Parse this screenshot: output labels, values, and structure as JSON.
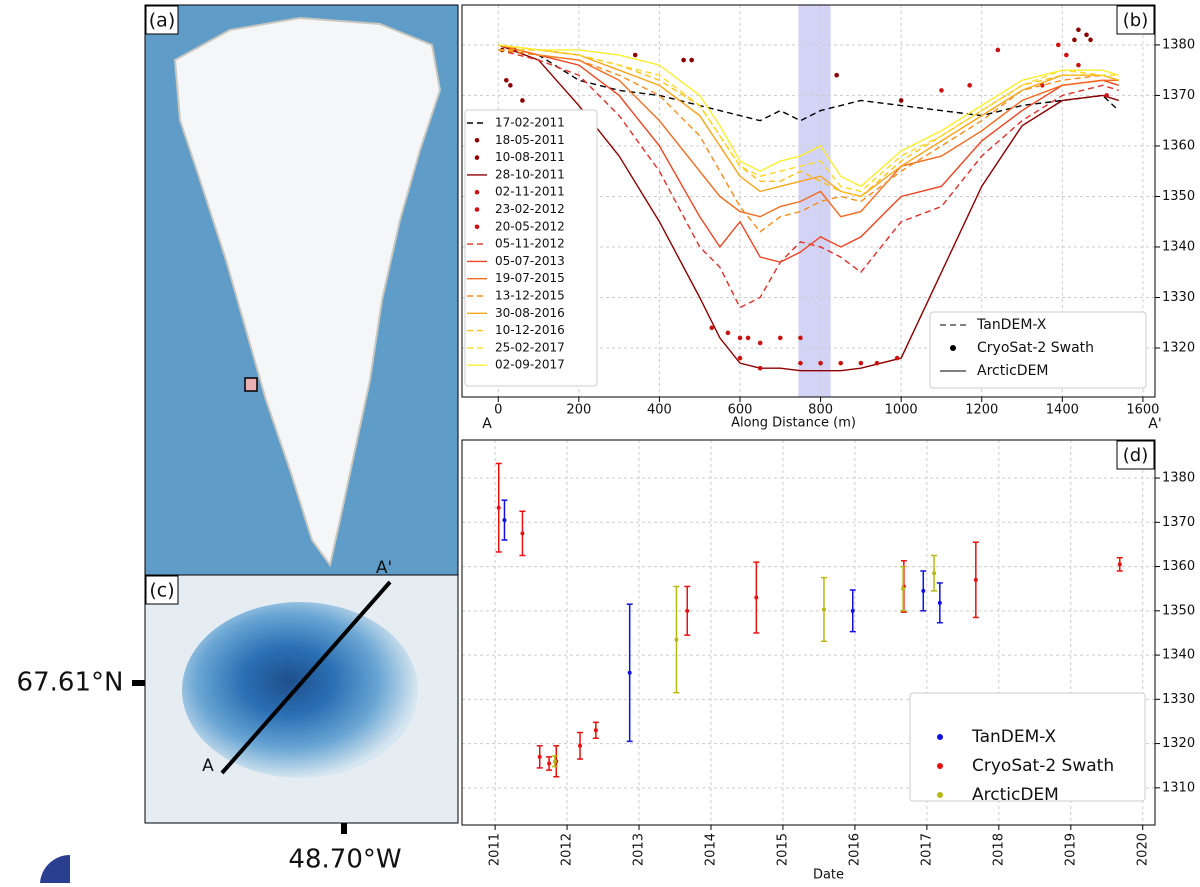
{
  "map_panels": {
    "a": {
      "label": "(a)"
    },
    "c": {
      "label": "(c)",
      "start": "A",
      "end": "A'",
      "lat": "67.61°N",
      "lon": "48.70°W"
    }
  },
  "chart_data": [
    {
      "type": "line",
      "label": "(b)",
      "xlabel": "Along Distance (m)",
      "x_end_labels": [
        "A",
        "A'"
      ],
      "xlim": [
        -90,
        1630
      ],
      "xticks": [
        0,
        200,
        400,
        600,
        800,
        1000,
        1200,
        1400,
        1600
      ],
      "ylim": [
        1310.3,
        1387.9
      ],
      "yticks": [
        1320,
        1330,
        1340,
        1350,
        1360,
        1370,
        1380
      ],
      "grid": true,
      "xspan": [
        745,
        825
      ],
      "xspan_color": "#c8c8f4",
      "series": [
        {
          "name": "17-02-2011",
          "color": "#000000",
          "style": "dashed",
          "x": [
            0,
            100,
            200,
            300,
            400,
            500,
            550,
            600,
            650,
            700,
            750,
            800,
            850,
            900,
            1000,
            1100,
            1200,
            1300,
            1400,
            1500,
            1540
          ],
          "values": [
            1379,
            1378,
            1373,
            1371,
            1370,
            1368,
            1367,
            1366,
            1365,
            1367,
            1365,
            1367,
            1368,
            1369,
            1368,
            1367,
            1366,
            1368,
            1369,
            1370,
            1367
          ]
        },
        {
          "name": "18-05-2011",
          "color": "#8b0000",
          "style": "dots",
          "x": [
            20,
            30,
            60,
            340,
            460,
            480,
            840,
            1000
          ],
          "values": [
            1373,
            1372,
            1369,
            1378,
            1377,
            1377,
            1374,
            1369
          ]
        },
        {
          "name": "10-08-2011",
          "color": "#8b0000",
          "style": "dots",
          "x": [
            10,
            40,
            1430,
            1440,
            1460,
            1470
          ],
          "values": [
            1379,
            1379,
            1381,
            1383,
            1382,
            1381
          ]
        },
        {
          "name": "28-10-2011",
          "color": "#8b0000",
          "style": "solid",
          "x": [
            0,
            100,
            200,
            300,
            400,
            500,
            550,
            600,
            650,
            700,
            750,
            800,
            850,
            900,
            1000,
            1100,
            1200,
            1300,
            1400,
            1500,
            1540
          ],
          "values": [
            1380,
            1377,
            1368,
            1358,
            1345,
            1330,
            1322,
            1317,
            1316,
            1316,
            1315.5,
            1315.5,
            1315.5,
            1316,
            1318,
            1335,
            1352,
            1364,
            1369,
            1370,
            1369
          ]
        },
        {
          "name": "02-11-2011",
          "color": "#cc1111",
          "style": "dots",
          "x": [
            530,
            570,
            600,
            620,
            650,
            700,
            750
          ],
          "values": [
            1324,
            1323,
            1322,
            1322,
            1321,
            1322,
            1322
          ]
        },
        {
          "name": "23-02-2012",
          "color": "#cc1111",
          "style": "dots",
          "x": [
            600,
            650,
            750,
            800,
            850,
            900,
            940,
            990
          ],
          "values": [
            1318,
            1316,
            1317,
            1317,
            1317,
            1317,
            1317,
            1318
          ]
        },
        {
          "name": "20-05-2012",
          "color": "#cc1111",
          "style": "dots",
          "x": [
            1100,
            1170,
            1240,
            1350,
            1390,
            1410,
            1440,
            1510
          ],
          "values": [
            1371,
            1372,
            1379,
            1372,
            1380,
            1378,
            1376,
            1370
          ]
        },
        {
          "name": "05-11-2012",
          "color": "#e0302a",
          "style": "dashed",
          "x": [
            0,
            100,
            200,
            300,
            400,
            500,
            550,
            600,
            650,
            700,
            750,
            800,
            850,
            900,
            1000,
            1100,
            1200,
            1300,
            1400,
            1500,
            1540
          ],
          "values": [
            1379,
            1377,
            1374,
            1366,
            1355,
            1340,
            1336,
            1328,
            1330,
            1337,
            1341,
            1340,
            1338,
            1335,
            1345,
            1348,
            1358,
            1365,
            1370,
            1372,
            1371
          ]
        },
        {
          "name": "05-07-2013",
          "color": "#ee4422",
          "style": "solid",
          "x": [
            0,
            100,
            200,
            300,
            400,
            500,
            550,
            600,
            650,
            700,
            750,
            800,
            850,
            900,
            1000,
            1100,
            1200,
            1300,
            1400,
            1500,
            1540
          ],
          "values": [
            1380,
            1378,
            1376,
            1370,
            1360,
            1346,
            1340,
            1345,
            1338,
            1337,
            1339,
            1342,
            1340,
            1342,
            1350,
            1352,
            1361,
            1367,
            1372,
            1373,
            1372
          ]
        },
        {
          "name": "19-07-2015",
          "color": "#f46a1e",
          "style": "solid",
          "x": [
            0,
            100,
            200,
            300,
            400,
            500,
            550,
            600,
            650,
            700,
            750,
            800,
            850,
            900,
            1000,
            1100,
            1200,
            1300,
            1400,
            1500,
            1540
          ],
          "values": [
            1380,
            1378,
            1377,
            1373,
            1365,
            1355,
            1350,
            1347,
            1346,
            1348,
            1349,
            1351,
            1346,
            1347,
            1356,
            1358,
            1363,
            1369,
            1372,
            1373,
            1373
          ]
        },
        {
          "name": "13-12-2015",
          "color": "#f88c1c",
          "style": "dashed",
          "x": [
            0,
            100,
            200,
            300,
            400,
            500,
            550,
            600,
            650,
            700,
            750,
            800,
            850,
            900,
            1000,
            1100,
            1200,
            1300,
            1400,
            1500,
            1540
          ],
          "values": [
            1379,
            1378,
            1377,
            1374,
            1370,
            1362,
            1355,
            1348,
            1343,
            1346,
            1347,
            1349,
            1350,
            1349,
            1355,
            1360,
            1365,
            1371,
            1373,
            1374,
            1373
          ]
        },
        {
          "name": "30-08-2016",
          "color": "#faa41a",
          "style": "solid",
          "x": [
            0,
            100,
            200,
            300,
            400,
            500,
            550,
            600,
            650,
            700,
            750,
            800,
            850,
            900,
            1000,
            1100,
            1200,
            1300,
            1400,
            1500,
            1540
          ],
          "values": [
            1380,
            1379,
            1378,
            1375,
            1372,
            1366,
            1360,
            1354,
            1351,
            1352,
            1353,
            1354,
            1351,
            1350,
            1356,
            1361,
            1366,
            1371,
            1374,
            1374,
            1373
          ]
        },
        {
          "name": "10-12-2016",
          "color": "#fcc21a",
          "style": "dashed",
          "x": [
            0,
            100,
            200,
            300,
            400,
            500,
            550,
            600,
            650,
            700,
            750,
            800,
            850,
            900,
            1000,
            1100,
            1200,
            1300,
            1400,
            1500,
            1540
          ],
          "values": [
            1379,
            1379,
            1378,
            1376,
            1373,
            1368,
            1362,
            1356,
            1353,
            1353,
            1355,
            1353,
            1351,
            1350,
            1357,
            1362,
            1367,
            1372,
            1374,
            1374,
            1373
          ]
        },
        {
          "name": "25-02-2017",
          "color": "#fdd826",
          "style": "dashed",
          "x": [
            0,
            100,
            200,
            300,
            400,
            500,
            550,
            600,
            650,
            700,
            750,
            800,
            850,
            900,
            1000,
            1100,
            1200,
            1300,
            1400,
            1500,
            1540
          ],
          "values": [
            1380,
            1379,
            1378,
            1376,
            1374,
            1368,
            1362,
            1356,
            1354,
            1355,
            1356,
            1357,
            1352,
            1351,
            1358,
            1362,
            1367,
            1372,
            1375,
            1374,
            1374
          ]
        },
        {
          "name": "02-09-2017",
          "color": "#fbee30",
          "style": "solid",
          "x": [
            0,
            100,
            200,
            300,
            400,
            500,
            550,
            600,
            650,
            700,
            750,
            800,
            850,
            900,
            1000,
            1100,
            1200,
            1300,
            1400,
            1500,
            1540
          ],
          "values": [
            1380,
            1379,
            1379,
            1378,
            1376,
            1370,
            1364,
            1357,
            1355,
            1357,
            1358,
            1360,
            1354,
            1352,
            1359,
            1363,
            1368,
            1373,
            1375,
            1375,
            1374
          ]
        }
      ],
      "style_legend": [
        {
          "label": "TanDEM-X",
          "style": "dashed"
        },
        {
          "label": "CryoSat-2 Swath",
          "style": "dots"
        },
        {
          "label": "ArcticDEM",
          "style": "solid"
        }
      ]
    },
    {
      "type": "errorbar",
      "label": "(d)",
      "xlabel": "Date",
      "xlim": [
        2010.54,
        2020.17
      ],
      "xticks": [
        2011,
        2012,
        2013,
        2014,
        2015,
        2016,
        2017,
        2018,
        2019,
        2020
      ],
      "ylim": [
        1301.6,
        1388.6
      ],
      "yticks": [
        1310,
        1320,
        1330,
        1340,
        1350,
        1360,
        1370,
        1380
      ],
      "grid": true,
      "series": [
        {
          "name": "TanDEM-X",
          "color": "#1010e0",
          "x": [
            2011.13,
            2012.87,
            2015.97,
            2016.95,
            2017.18
          ],
          "values": [
            1370.5,
            1336,
            1350,
            1354.5,
            1351.8
          ],
          "errors": [
            4.5,
            15.5,
            4.7,
            4.5,
            4.5
          ]
        },
        {
          "name": "CryoSat-2 Swath",
          "color": "#e81010",
          "x": [
            2011.05,
            2011.38,
            2011.62,
            2011.75,
            2011.85,
            2012.18,
            2012.4,
            2013.67,
            2014.63,
            2016.68,
            2017.68,
            2019.68
          ],
          "values": [
            1373.3,
            1367.5,
            1317,
            1315.5,
            1316,
            1319.5,
            1323,
            1350,
            1353,
            1355.5,
            1357,
            1360.5
          ],
          "errors": [
            10,
            5,
            2.5,
            1.5,
            3.5,
            3,
            1.8,
            5.5,
            8,
            5.8,
            8.5,
            1.5
          ]
        },
        {
          "name": "ArcticDEM",
          "color": "#b8b814",
          "x": [
            2011.83,
            2013.52,
            2015.57,
            2016.67,
            2017.1
          ],
          "values": [
            1316,
            1343.5,
            1350.3,
            1355,
            1358.5
          ],
          "errors": [
            1.2,
            12,
            7.2,
            5,
            4
          ]
        }
      ]
    }
  ]
}
